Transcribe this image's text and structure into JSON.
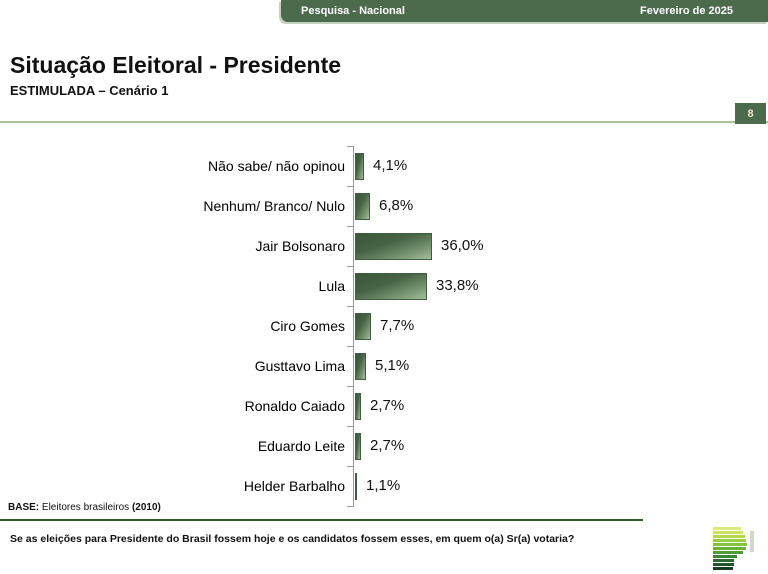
{
  "header": {
    "left_label": "Pesquisa - Nacional",
    "right_label": "Fevereiro de 2025"
  },
  "title": "Situação Eleitoral - Presidente",
  "subtitle": "ESTIMULADA – Cenário 1",
  "page_number": "8",
  "chart_data": {
    "type": "bar",
    "orientation": "horizontal",
    "categories": [
      "Não sabe/ não opinou",
      "Nenhum/ Branco/ Nulo",
      "Jair Bolsonaro",
      "Lula",
      "Ciro Gomes",
      "Gusttavo Lima",
      "Ronaldo Caiado",
      "Eduardo Leite",
      "Helder Barbalho"
    ],
    "values": [
      4.1,
      6.8,
      36.0,
      33.8,
      7.7,
      5.1,
      2.7,
      2.7,
      1.1
    ],
    "value_labels": [
      "4,1%",
      "6,8%",
      "36,0%",
      "33,8%",
      "7,7%",
      "5,1%",
      "2,7%",
      "2,7%",
      "1,1%"
    ],
    "title": "Situação Eleitoral - Presidente (ESTIMULADA – Cenário 1)",
    "xlabel": "",
    "ylabel": "",
    "xlim": [
      0,
      40
    ],
    "grid": false,
    "legend": false,
    "bar_color_dark": "#3a583a",
    "bar_color_light": "#a5bf9c"
  },
  "footer": {
    "base_label": "BASE:",
    "base_text": " Eleitores brasileiros ",
    "base_year": "(2010)",
    "question": "Se as eleições para Presidente do Brasil fossem hoje e os candidatos fossem esses, em quem o(a) Sr(a) votaria?"
  },
  "colors": {
    "header_green": "#4c6b4c",
    "divider_light_green": "#a9c29e",
    "rule_dark_green": "#2f5e2d",
    "badge_text": "#e9e6c8"
  },
  "logo": {
    "name": "parana-pesquisas-logo",
    "stripes": [
      {
        "w": 28,
        "c": "#dce97c"
      },
      {
        "w": 30,
        "c": "#cde35f"
      },
      {
        "w": 32,
        "c": "#b5d84a"
      },
      {
        "w": 33,
        "c": "#9ccf40"
      },
      {
        "w": 34,
        "c": "#83c23a"
      },
      {
        "w": 33,
        "c": "#68b038"
      },
      {
        "w": 30,
        "c": "#4f9c38"
      },
      {
        "w": 24,
        "c": "#3b8536"
      },
      {
        "w": 21,
        "c": "#2e6a30"
      },
      {
        "w": 21,
        "c": "#245229"
      },
      {
        "w": 20,
        "c": "#193d21"
      }
    ]
  }
}
